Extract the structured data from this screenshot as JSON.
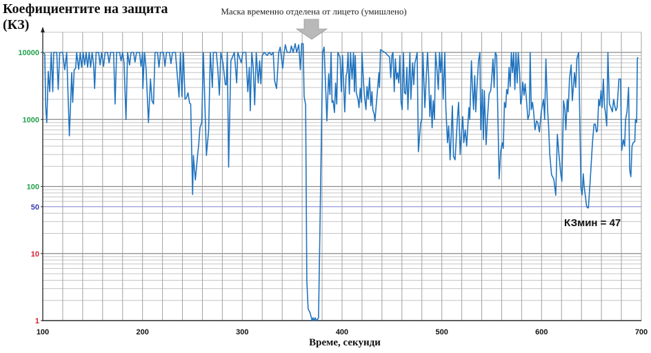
{
  "chart_data": {
    "type": "line",
    "title": "Коефициентите на защита (КЗ)",
    "xlabel": "Време, секунди",
    "ylabel": "",
    "annotation": "Маска временно отделена от лицето (умишлено)",
    "annotation_x": 365,
    "min_label": "КЗмин = 47",
    "xlim": [
      100,
      700
    ],
    "ylim": [
      1,
      20000
    ],
    "y_scale": "log",
    "grid": true,
    "x_ticks": [
      "100",
      "200",
      "300",
      "400",
      "500",
      "600",
      "700"
    ],
    "y_ticks": [
      {
        "value": 10000,
        "label": "10000",
        "color": "#22a04b"
      },
      {
        "value": 1000,
        "label": "1000",
        "color": "#22a04b"
      },
      {
        "value": 100,
        "label": "100",
        "color": "#22a04b"
      },
      {
        "value": 50,
        "label": "50",
        "color": "#3b3bb5"
      },
      {
        "value": 10,
        "label": "10",
        "color": "#d42030"
      },
      {
        "value": 1,
        "label": "1",
        "color": "#d42030"
      }
    ],
    "reference_line": {
      "value": 50,
      "color": "#9a9ae0"
    },
    "line_color": "#1f73bf",
    "points": [
      [
        100,
        10000
      ],
      [
        102,
        9500
      ],
      [
        103,
        1500
      ],
      [
        104,
        900
      ],
      [
        105.5,
        5200
      ],
      [
        107,
        2600
      ],
      [
        108.5,
        10000
      ],
      [
        110,
        2600
      ],
      [
        111,
        10000
      ],
      [
        114,
        10000
      ],
      [
        115.5,
        2800
      ],
      [
        117,
        10000
      ],
      [
        120,
        10000
      ],
      [
        122,
        5500
      ],
      [
        124,
        10000
      ],
      [
        126.7,
        570
      ],
      [
        129,
        5000
      ],
      [
        130,
        1800
      ],
      [
        131.5,
        5500
      ],
      [
        133,
        5800
      ],
      [
        134,
        10000
      ],
      [
        136,
        5600
      ],
      [
        137.5,
        10000
      ],
      [
        139,
        6000
      ],
      [
        140.5,
        10000
      ],
      [
        142,
        6500
      ],
      [
        143.5,
        10000
      ],
      [
        145,
        6000
      ],
      [
        146.5,
        10000
      ],
      [
        148,
        6000
      ],
      [
        149.5,
        10000
      ],
      [
        151,
        6500
      ],
      [
        152,
        2900
      ],
      [
        153.5,
        10000
      ],
      [
        156,
        10000
      ],
      [
        157.5,
        6500
      ],
      [
        159,
        10000
      ],
      [
        161,
        6200
      ],
      [
        162.5,
        10000
      ],
      [
        165,
        10000
      ],
      [
        166.5,
        7000
      ],
      [
        168,
        10000
      ],
      [
        171,
        10000
      ],
      [
        172.5,
        1700
      ],
      [
        174,
        10000
      ],
      [
        177,
        10000
      ],
      [
        178.5,
        7500
      ],
      [
        180,
        10000
      ],
      [
        181.5,
        7000
      ],
      [
        183.4,
        1000
      ],
      [
        185,
        10000
      ],
      [
        187,
        6500
      ],
      [
        188.5,
        10000
      ],
      [
        191,
        10000
      ],
      [
        192.5,
        7200
      ],
      [
        194,
        10000
      ],
      [
        197,
        10000
      ],
      [
        198.5,
        6200
      ],
      [
        200,
        10000
      ],
      [
        200.3,
        2900
      ],
      [
        202,
        10000
      ],
      [
        203.5,
        6000
      ],
      [
        206,
        900
      ],
      [
        208,
        4000
      ],
      [
        209.5,
        1900
      ],
      [
        211,
        1700
      ],
      [
        212.5,
        10000
      ],
      [
        215,
        10000
      ],
      [
        216.5,
        6000
      ],
      [
        218,
        10000
      ],
      [
        221,
        10000
      ],
      [
        222.5,
        6200
      ],
      [
        224,
        10000
      ],
      [
        227,
        10000
      ],
      [
        228.5,
        6800
      ],
      [
        230,
        10000
      ],
      [
        233,
        10000
      ],
      [
        236.6,
        2150
      ],
      [
        238,
        10000
      ],
      [
        239.5,
        2200
      ],
      [
        241,
        10000
      ],
      [
        242.6,
        2000
      ],
      [
        244,
        2100
      ],
      [
        245.6,
        2500
      ],
      [
        247.2,
        1750
      ],
      [
        248.3,
        1700
      ],
      [
        250.2,
        76
      ],
      [
        251,
        290
      ],
      [
        253,
        125
      ],
      [
        254.8,
        250
      ],
      [
        256.4,
        440
      ],
      [
        257.5,
        750
      ],
      [
        259.4,
        900
      ],
      [
        261,
        10000
      ],
      [
        264,
        290
      ],
      [
        266.3,
        700
      ],
      [
        268,
        10000
      ],
      [
        270,
        3000
      ],
      [
        271,
        10000
      ],
      [
        274,
        10000
      ],
      [
        275.5,
        5500
      ],
      [
        277,
        2300
      ],
      [
        278.5,
        10000
      ],
      [
        280.6,
        7000
      ],
      [
        283,
        3300
      ],
      [
        284,
        3300
      ],
      [
        285,
        10000
      ],
      [
        286.3,
        195
      ],
      [
        288.6,
        7500
      ],
      [
        292,
        10000
      ],
      [
        294.4,
        3500
      ],
      [
        295.5,
        10000
      ],
      [
        299,
        7000
      ],
      [
        300.5,
        10000
      ],
      [
        303.6,
        10000
      ],
      [
        305.5,
        2600
      ],
      [
        307,
        6000
      ],
      [
        308,
        1350
      ],
      [
        309.5,
        10000
      ],
      [
        311,
        6000
      ],
      [
        312.4,
        1650
      ],
      [
        314,
        10000
      ],
      [
        316,
        3500
      ],
      [
        317.4,
        7500
      ],
      [
        318.6,
        3400
      ],
      [
        320,
        9000
      ],
      [
        322,
        10000
      ],
      [
        325,
        9000
      ],
      [
        327,
        10000
      ],
      [
        329,
        9200
      ],
      [
        331,
        10000
      ],
      [
        332.4,
        3800
      ],
      [
        334.3,
        2900
      ],
      [
        335.5,
        5500
      ],
      [
        336.5,
        10000
      ],
      [
        338,
        12000
      ],
      [
        340.5,
        5800
      ],
      [
        342,
        10000
      ],
      [
        343.2,
        13000
      ],
      [
        345,
        10000
      ],
      [
        348,
        10000
      ],
      [
        349.2,
        12500
      ],
      [
        351,
        10000
      ],
      [
        353,
        13500
      ],
      [
        354.5,
        10000
      ],
      [
        356.6,
        13000
      ],
      [
        358.2,
        5500
      ],
      [
        359.5,
        13500
      ],
      [
        361,
        13500
      ],
      [
        362,
        2200
      ],
      [
        363.5,
        1650
      ],
      [
        364.7,
        4
      ],
      [
        366,
        1.5
      ],
      [
        368,
        1.3
      ],
      [
        370,
        1
      ],
      [
        371,
        1.1
      ],
      [
        372,
        1
      ],
      [
        373,
        1.1
      ],
      [
        374.5,
        1
      ],
      [
        376.4,
        1.1
      ],
      [
        378.5,
        100
      ],
      [
        380.6,
        10000
      ],
      [
        382,
        12000
      ],
      [
        384.8,
        950
      ],
      [
        386.6,
        4800
      ],
      [
        387.8,
        2350
      ],
      [
        389,
        10000
      ],
      [
        390,
        1800
      ],
      [
        391,
        1900
      ],
      [
        392.4,
        1270
      ],
      [
        393.5,
        3500
      ],
      [
        394.7,
        1700
      ],
      [
        395.8,
        10000
      ],
      [
        398,
        8500
      ],
      [
        399.3,
        2600
      ],
      [
        400.4,
        9000
      ],
      [
        402.7,
        1300
      ],
      [
        404,
        4500
      ],
      [
        405,
        5000
      ],
      [
        406,
        10000
      ],
      [
        407.3,
        2400
      ],
      [
        408.5,
        10000
      ],
      [
        410,
        4000
      ],
      [
        411.5,
        10000
      ],
      [
        412.4,
        2600
      ],
      [
        413.3,
        9000
      ],
      [
        414.3,
        2500
      ],
      [
        416,
        2000
      ],
      [
        417,
        1500
      ],
      [
        418.2,
        2900
      ],
      [
        419.3,
        1800
      ],
      [
        420,
        10000
      ],
      [
        421.6,
        3500
      ],
      [
        422.5,
        2200
      ],
      [
        424,
        1400
      ],
      [
        425,
        3100
      ],
      [
        426.2,
        2000
      ],
      [
        427.6,
        4200
      ],
      [
        428.8,
        1600
      ],
      [
        430,
        2600
      ],
      [
        430.8,
        1400
      ],
      [
        432.2,
        1200
      ],
      [
        433,
        950
      ],
      [
        435,
        2200
      ],
      [
        437,
        5000
      ],
      [
        437.5,
        3000
      ],
      [
        438.5,
        11000
      ],
      [
        443,
        10000
      ],
      [
        447.7,
        8500
      ],
      [
        448.8,
        4200
      ],
      [
        450,
        9000
      ],
      [
        451,
        10000
      ],
      [
        452.3,
        2600
      ],
      [
        453.4,
        8000
      ],
      [
        454.6,
        4000
      ],
      [
        455.7,
        5000
      ],
      [
        456.9,
        3500
      ],
      [
        458,
        9000
      ],
      [
        459.2,
        1800
      ],
      [
        460.3,
        1400
      ],
      [
        461.5,
        10000
      ],
      [
        462.6,
        2500
      ],
      [
        463.8,
        2400
      ],
      [
        465,
        6000
      ],
      [
        466,
        1400
      ],
      [
        468,
        10000
      ],
      [
        469,
        2000
      ],
      [
        470.7,
        7000
      ],
      [
        471.9,
        3300
      ],
      [
        473,
        7000
      ],
      [
        474,
        8000
      ],
      [
        475.3,
        10000
      ],
      [
        476.5,
        330
      ],
      [
        478.8,
        890
      ],
      [
        480,
        1000
      ],
      [
        481,
        10000
      ],
      [
        483,
        1500
      ],
      [
        484.5,
        4500
      ],
      [
        485.7,
        10000
      ],
      [
        486.8,
        4300
      ],
      [
        488,
        1100
      ],
      [
        489,
        2300
      ],
      [
        490.3,
        750
      ],
      [
        491.4,
        1900
      ],
      [
        492.6,
        1000
      ],
      [
        493.7,
        10000
      ],
      [
        495,
        6000
      ],
      [
        496.5,
        2800
      ],
      [
        497.7,
        10000
      ],
      [
        498.8,
        5000
      ],
      [
        500,
        10000
      ],
      [
        501.4,
        2000
      ],
      [
        503,
        10000
      ],
      [
        504,
        1500
      ],
      [
        505.7,
        450
      ],
      [
        506.9,
        800
      ],
      [
        508.3,
        250
      ],
      [
        509.4,
        600
      ],
      [
        510.6,
        1600
      ],
      [
        511.7,
        280
      ],
      [
        513.3,
        250
      ],
      [
        515.6,
        1000
      ],
      [
        516.8,
        1800
      ],
      [
        518.4,
        300
      ],
      [
        519.8,
        650
      ],
      [
        521,
        1100
      ],
      [
        522,
        450
      ],
      [
        523.5,
        700
      ],
      [
        524.9,
        400
      ],
      [
        526.3,
        900
      ],
      [
        527.2,
        1500
      ],
      [
        528,
        1000
      ],
      [
        529.7,
        7500
      ],
      [
        530.6,
        3300
      ],
      [
        531.8,
        1400
      ],
      [
        533,
        4500
      ],
      [
        534,
        1300
      ],
      [
        535.2,
        3000
      ],
      [
        536.8,
        7500
      ],
      [
        538.2,
        10000
      ],
      [
        539.1,
        700
      ],
      [
        540.5,
        2800
      ],
      [
        541.7,
        500
      ],
      [
        542.6,
        2700
      ],
      [
        544.4,
        420
      ],
      [
        545.6,
        950
      ],
      [
        547.4,
        2400
      ],
      [
        549,
        2700
      ],
      [
        550,
        4000
      ],
      [
        551.3,
        8000
      ],
      [
        552.4,
        3000
      ],
      [
        553.6,
        10000
      ],
      [
        555,
        9000
      ],
      [
        557.5,
        130
      ],
      [
        559,
        330
      ],
      [
        560.5,
        450
      ],
      [
        561.6,
        370
      ],
      [
        562.8,
        1800
      ],
      [
        564,
        1500
      ],
      [
        565,
        2800
      ],
      [
        566.2,
        2400
      ],
      [
        567.4,
        6000
      ],
      [
        568.5,
        3100
      ],
      [
        569.7,
        10000
      ],
      [
        570.9,
        5000
      ],
      [
        572,
        10000
      ],
      [
        573.2,
        2800
      ],
      [
        574.3,
        10000
      ],
      [
        575.5,
        3500
      ],
      [
        576.6,
        10000
      ],
      [
        578,
        5000
      ],
      [
        579,
        1700
      ],
      [
        580,
        2000
      ],
      [
        581.2,
        3600
      ],
      [
        582.4,
        2300
      ],
      [
        583.5,
        3400
      ],
      [
        584.7,
        2100
      ],
      [
        586.3,
        1000
      ],
      [
        587.7,
        1200
      ],
      [
        588.6,
        10000
      ],
      [
        589.7,
        1400
      ],
      [
        590.9,
        1800
      ],
      [
        592,
        1300
      ],
      [
        593.4,
        700
      ],
      [
        595,
        950
      ],
      [
        596.2,
        900
      ],
      [
        597.8,
        650
      ],
      [
        599.7,
        1300
      ],
      [
        601.9,
        2000
      ],
      [
        603.1,
        1000
      ],
      [
        604.3,
        8000
      ],
      [
        605.9,
        1500
      ],
      [
        607,
        800
      ],
      [
        608.2,
        300
      ],
      [
        610,
        150
      ],
      [
        612.3,
        128
      ],
      [
        614.2,
        74
      ],
      [
        615.8,
        600
      ],
      [
        617.4,
        300
      ],
      [
        619.2,
        155
      ],
      [
        620.4,
        120
      ],
      [
        622,
        1900
      ],
      [
        623.4,
        1400
      ],
      [
        624.3,
        700
      ],
      [
        625.7,
        2000
      ],
      [
        626.6,
        1300
      ],
      [
        628,
        4000
      ],
      [
        629.6,
        6500
      ],
      [
        630.8,
        1900
      ],
      [
        633,
        5000
      ],
      [
        634.2,
        3000
      ],
      [
        635.4,
        8000
      ],
      [
        637.2,
        10000
      ],
      [
        639.5,
        94
      ],
      [
        640.6,
        75
      ],
      [
        641.8,
        155
      ],
      [
        642.7,
        100
      ],
      [
        644,
        70
      ],
      [
        645,
        52
      ],
      [
        646,
        48
      ],
      [
        646.9,
        48
      ],
      [
        648.7,
        120
      ],
      [
        651,
        450
      ],
      [
        652.6,
        850
      ],
      [
        653.8,
        850
      ],
      [
        655,
        650
      ],
      [
        656,
        680
      ],
      [
        657.3,
        2000
      ],
      [
        658.4,
        1600
      ],
      [
        659.6,
        2700
      ],
      [
        660.7,
        1500
      ],
      [
        661.9,
        4000
      ],
      [
        663,
        1600
      ],
      [
        664.2,
        1200
      ],
      [
        665.3,
        800
      ],
      [
        666.5,
        10000
      ],
      [
        668,
        1700
      ],
      [
        669.5,
        1500
      ],
      [
        671,
        1300
      ],
      [
        672.2,
        2000
      ],
      [
        673.4,
        1600
      ],
      [
        674.5,
        1350
      ],
      [
        675.7,
        1500
      ],
      [
        677.5,
        4000
      ],
      [
        679.1,
        4000
      ],
      [
        680.3,
        345
      ],
      [
        681.9,
        500
      ],
      [
        683.3,
        400
      ],
      [
        684.2,
        1000
      ],
      [
        685.6,
        1300
      ],
      [
        687.2,
        3000
      ],
      [
        688.4,
        175
      ],
      [
        689.5,
        140
      ],
      [
        690.7,
        400
      ],
      [
        691.8,
        450
      ],
      [
        693.4,
        470
      ],
      [
        694.1,
        1000
      ],
      [
        695.3,
        900
      ],
      [
        696,
        8000
      ],
      [
        696.6,
        8500
      ]
    ]
  }
}
